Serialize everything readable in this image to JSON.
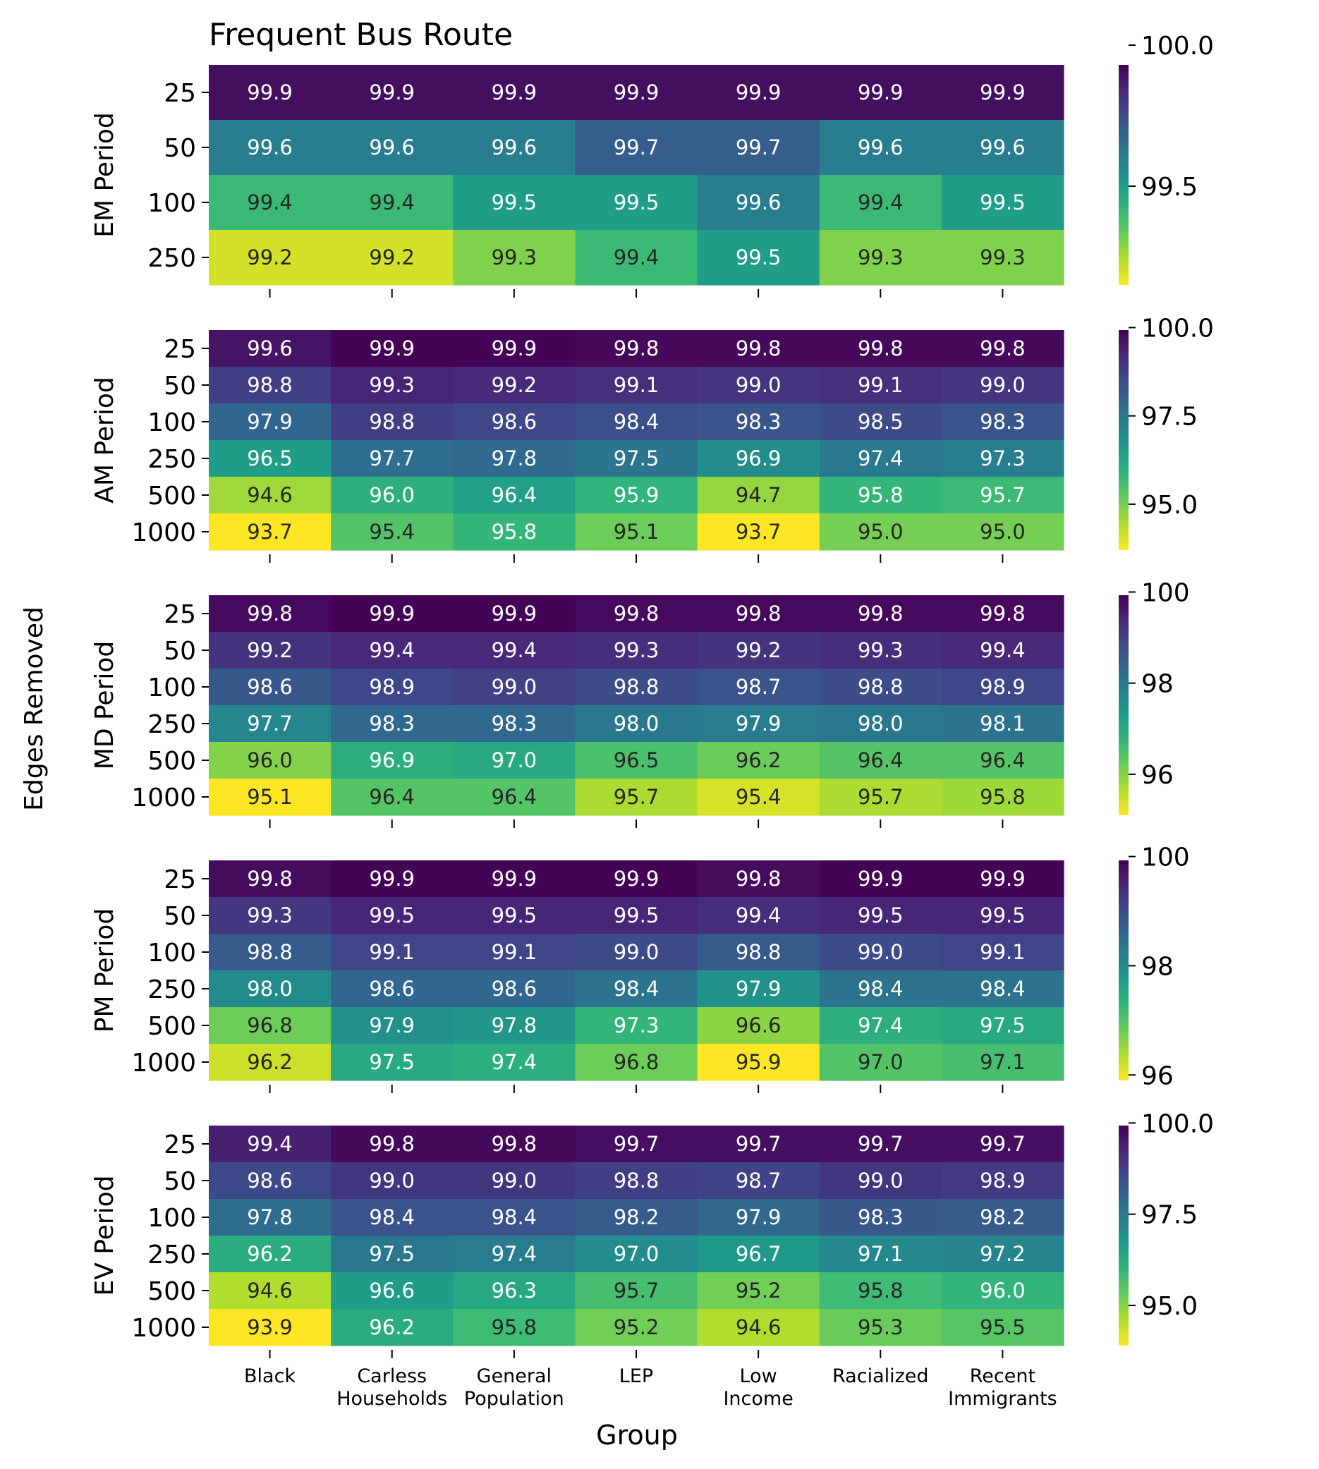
{
  "chart_data": {
    "type": "heatmap",
    "title": "Frequent Bus Route",
    "xlabel": "Group",
    "ylabel": "Edges Removed",
    "colormap": "viridis (reversed: high = dark purple, low = yellow)",
    "categories": [
      [
        "Black"
      ],
      [
        "Carless",
        "Households"
      ],
      [
        "General",
        "Population"
      ],
      [
        "LEP"
      ],
      [
        "Low",
        "Income"
      ],
      [
        "Racialized"
      ],
      [
        "Recent",
        "Immigrants"
      ]
    ],
    "panels": [
      {
        "name": "EM Period",
        "rows": [
          "25",
          "50",
          "100",
          "250"
        ],
        "values": [
          [
            99.9,
            99.9,
            99.9,
            99.9,
            99.9,
            99.9,
            99.9
          ],
          [
            99.6,
            99.6,
            99.6,
            99.7,
            99.7,
            99.6,
            99.6
          ],
          [
            99.4,
            99.4,
            99.5,
            99.5,
            99.6,
            99.4,
            99.5
          ],
          [
            99.2,
            99.2,
            99.3,
            99.4,
            99.5,
            99.3,
            99.3
          ]
        ],
        "vmin": 99.15,
        "vmax": 99.93,
        "colorbar_ticks": [
          99.5,
          100.0
        ],
        "colorbar_labels": [
          "99.5",
          "100.0"
        ]
      },
      {
        "name": "AM Period",
        "rows": [
          "25",
          "50",
          "100",
          "250",
          "500",
          "1000"
        ],
        "values": [
          [
            99.6,
            99.9,
            99.9,
            99.8,
            99.8,
            99.8,
            99.8
          ],
          [
            98.8,
            99.3,
            99.2,
            99.1,
            99.0,
            99.1,
            99.0
          ],
          [
            97.9,
            98.8,
            98.6,
            98.4,
            98.3,
            98.5,
            98.3
          ],
          [
            96.5,
            97.7,
            97.8,
            97.5,
            96.9,
            97.4,
            97.3
          ],
          [
            94.6,
            96.0,
            96.4,
            95.9,
            94.7,
            95.8,
            95.7
          ],
          [
            93.7,
            95.4,
            95.8,
            95.1,
            93.7,
            95.0,
            95.0
          ]
        ],
        "vmin": 93.7,
        "vmax": 99.93,
        "colorbar_ticks": [
          95.0,
          97.5,
          100.0
        ],
        "colorbar_labels": [
          "95.0",
          "97.5",
          "100.0"
        ]
      },
      {
        "name": "MD Period",
        "rows": [
          "25",
          "50",
          "100",
          "250",
          "500",
          "1000"
        ],
        "values": [
          [
            99.8,
            99.9,
            99.9,
            99.8,
            99.8,
            99.8,
            99.8
          ],
          [
            99.2,
            99.4,
            99.4,
            99.3,
            99.2,
            99.3,
            99.4
          ],
          [
            98.6,
            98.9,
            99.0,
            98.8,
            98.7,
            98.8,
            98.9
          ],
          [
            97.7,
            98.3,
            98.3,
            98.0,
            97.9,
            98.0,
            98.1
          ],
          [
            96.0,
            96.9,
            97.0,
            96.5,
            96.2,
            96.4,
            96.4
          ],
          [
            95.1,
            96.4,
            96.4,
            95.7,
            95.4,
            95.7,
            95.8
          ]
        ],
        "vmin": 95.1,
        "vmax": 99.93,
        "colorbar_ticks": [
          96,
          98,
          100
        ],
        "colorbar_labels": [
          "96",
          "98",
          "100"
        ]
      },
      {
        "name": "PM Period",
        "rows": [
          "25",
          "50",
          "100",
          "250",
          "500",
          "1000"
        ],
        "values": [
          [
            99.8,
            99.9,
            99.9,
            99.9,
            99.8,
            99.9,
            99.9
          ],
          [
            99.3,
            99.5,
            99.5,
            99.5,
            99.4,
            99.5,
            99.5
          ],
          [
            98.8,
            99.1,
            99.1,
            99.0,
            98.8,
            99.0,
            99.1
          ],
          [
            98.0,
            98.6,
            98.6,
            98.4,
            97.9,
            98.4,
            98.4
          ],
          [
            96.8,
            97.9,
            97.8,
            97.3,
            96.6,
            97.4,
            97.5
          ],
          [
            96.2,
            97.5,
            97.4,
            96.8,
            95.9,
            97.0,
            97.1
          ]
        ],
        "vmin": 95.9,
        "vmax": 99.93,
        "colorbar_ticks": [
          96,
          98,
          100
        ],
        "colorbar_labels": [
          "96",
          "98",
          "100"
        ]
      },
      {
        "name": "EV Period",
        "rows": [
          "25",
          "50",
          "100",
          "250",
          "500",
          "1000"
        ],
        "values": [
          [
            99.4,
            99.8,
            99.8,
            99.7,
            99.7,
            99.7,
            99.7
          ],
          [
            98.6,
            99.0,
            99.0,
            98.8,
            98.7,
            99.0,
            98.9
          ],
          [
            97.8,
            98.4,
            98.4,
            98.2,
            97.9,
            98.3,
            98.2
          ],
          [
            96.2,
            97.5,
            97.4,
            97.0,
            96.7,
            97.1,
            97.2
          ],
          [
            94.6,
            96.6,
            96.3,
            95.7,
            95.2,
            95.8,
            96.0
          ],
          [
            93.9,
            96.2,
            95.8,
            95.2,
            94.6,
            95.3,
            95.5
          ]
        ],
        "vmin": 93.9,
        "vmax": 99.93,
        "colorbar_ticks": [
          95.0,
          97.5,
          100.0
        ],
        "colorbar_labels": [
          "95.0",
          "97.5",
          "100.0"
        ]
      }
    ]
  }
}
